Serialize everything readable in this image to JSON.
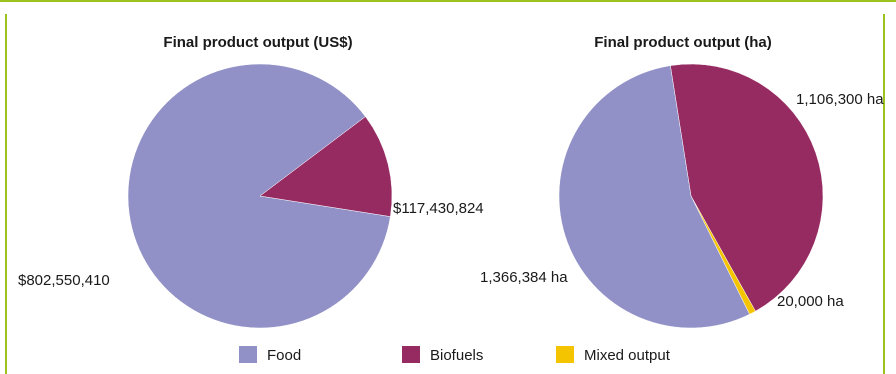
{
  "chart_data": [
    {
      "type": "pie",
      "title": "Final product output (US$)",
      "categories": [
        "Food",
        "Biofuels"
      ],
      "values": [
        802550410,
        117430824
      ],
      "labels": [
        "$802,550,410",
        "$117,430,824"
      ],
      "colors": [
        "#9191c8",
        "#962b62"
      ]
    },
    {
      "type": "pie",
      "title": "Final product output (ha)",
      "categories": [
        "Food",
        "Biofuels",
        "Mixed output"
      ],
      "values": [
        1366384,
        1106300,
        20000
      ],
      "labels": [
        "1,366,384 ha",
        "1,106,300 ha",
        "20,000 ha"
      ],
      "colors": [
        "#9191c8",
        "#962b62",
        "#f5c400"
      ]
    }
  ],
  "legend": [
    {
      "label": "Food",
      "color": "#9191c8"
    },
    {
      "label": "Biofuels",
      "color": "#962b62"
    },
    {
      "label": "Mixed output",
      "color": "#f5c400"
    }
  ]
}
